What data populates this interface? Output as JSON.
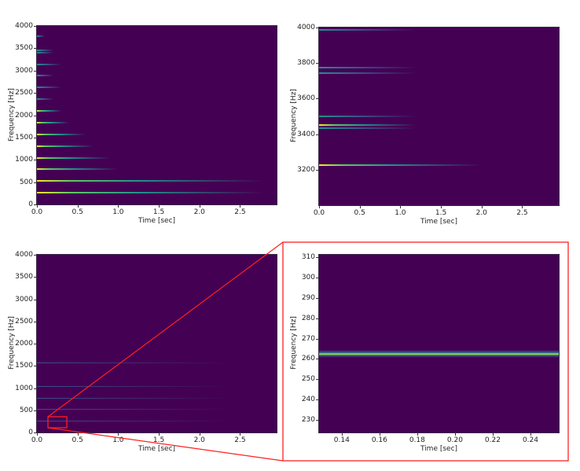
{
  "chart_data": [
    {
      "type": "heatmap",
      "title": "",
      "xlabel": "Time [sec]",
      "ylabel": "Frequency [Hz]",
      "xlim": [
        0.0,
        2.95
      ],
      "ylim": [
        0,
        4000
      ],
      "xticks": [
        "0.0",
        "0.5",
        "1.0",
        "1.5",
        "2.0",
        "2.5"
      ],
      "yticks": [
        "0",
        "500",
        "1000",
        "1500",
        "2000",
        "2500",
        "3000",
        "3500",
        "4000"
      ],
      "colormap": "viridis",
      "harmonics_hz": [
        262,
        524,
        786,
        1048,
        1310,
        1572,
        1834,
        2096,
        2358,
        2620,
        2882,
        3144,
        3406,
        3450,
        3775
      ],
      "harmonic_decay_sec": [
        2.8,
        2.8,
        1.0,
        0.9,
        0.7,
        0.6,
        0.4,
        0.3,
        0.2,
        0.3,
        0.2,
        0.3,
        0.2,
        0.2,
        0.1
      ]
    },
    {
      "type": "heatmap",
      "title": "",
      "xlabel": "Time [sec]",
      "ylabel": "Frequency [Hz]",
      "xlim": [
        0.0,
        2.95
      ],
      "ylim": [
        3000,
        4000
      ],
      "xticks": [
        "0.0",
        "0.5",
        "1.0",
        "1.5",
        "2.0",
        "2.5"
      ],
      "yticks": [
        "3200",
        "3400",
        "3600",
        "3800",
        "4000"
      ],
      "colormap": "viridis",
      "harmonics_hz": [
        3225,
        3435,
        3450,
        3500,
        3745,
        3775,
        3985
      ]
    },
    {
      "type": "heatmap",
      "title": "",
      "xlabel": "Time [sec]",
      "ylabel": "Frequency [Hz]",
      "xlim": [
        0.0,
        2.95
      ],
      "ylim": [
        0,
        4000
      ],
      "xticks": [
        "0.0",
        "0.5",
        "1.0",
        "1.5",
        "2.0",
        "2.5"
      ],
      "yticks": [
        "0",
        "500",
        "1000",
        "1500",
        "2000",
        "2500",
        "3000",
        "3500",
        "4000"
      ],
      "colormap": "viridis",
      "annotation": "red zoom rectangle t=0.13–0.35 s, f=150–350 Hz"
    },
    {
      "type": "heatmap",
      "title": "",
      "xlabel": "Time [sec]",
      "ylabel": "Frequency [Hz]",
      "xlim": [
        0.128,
        0.255
      ],
      "ylim": [
        224,
        311
      ],
      "xticks": [
        "0.14",
        "0.16",
        "0.18",
        "0.20",
        "0.22",
        "0.24"
      ],
      "yticks": [
        "230",
        "240",
        "250",
        "260",
        "270",
        "280",
        "290",
        "300",
        "310"
      ],
      "colormap": "viridis",
      "peak_hz": 262.5
    }
  ],
  "labels": {
    "xlabel": "Time [sec]",
    "ylabel": "Frequency [Hz]"
  },
  "colors": {
    "background": "#440154",
    "peak": "#fde725",
    "mid": "#21918c",
    "zoom_box": "#ff2020"
  }
}
